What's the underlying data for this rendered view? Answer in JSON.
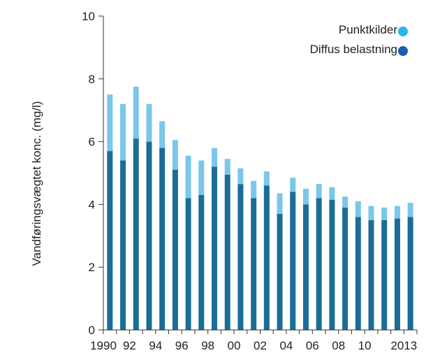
{
  "chart_data": {
    "type": "bar",
    "stacked": true,
    "title": "",
    "xlabel": "",
    "ylabel": "Vandføringsvægtet konc. (mg/l)",
    "ylim": [
      0,
      10
    ],
    "yticks": [
      0,
      2,
      4,
      6,
      8,
      10
    ],
    "grid": false,
    "legend_position": "top-right",
    "categories": [
      1990,
      1991,
      1992,
      1993,
      1994,
      1995,
      1996,
      1997,
      1998,
      1999,
      2000,
      2001,
      2002,
      2003,
      2004,
      2005,
      2006,
      2007,
      2008,
      2009,
      2010,
      2011,
      2012,
      2013
    ],
    "xtick_labels": [
      {
        "year": 1990,
        "label": "1990"
      },
      {
        "year": 1992,
        "label": "92"
      },
      {
        "year": 1994,
        "label": "94"
      },
      {
        "year": 1996,
        "label": "96"
      },
      {
        "year": 1998,
        "label": "98"
      },
      {
        "year": 2000,
        "label": "00"
      },
      {
        "year": 2002,
        "label": "02"
      },
      {
        "year": 2004,
        "label": "04"
      },
      {
        "year": 2006,
        "label": "06"
      },
      {
        "year": 2008,
        "label": "08"
      },
      {
        "year": 2010,
        "label": "10"
      },
      {
        "year": 2013,
        "label": "2013"
      }
    ],
    "series": [
      {
        "name": "Diffus belastning",
        "color": "#1a6e96",
        "values": [
          5.7,
          5.4,
          6.1,
          6.0,
          5.8,
          5.1,
          4.2,
          4.3,
          5.2,
          4.95,
          4.65,
          4.2,
          4.6,
          3.7,
          4.4,
          4.0,
          4.2,
          4.15,
          3.9,
          3.6,
          3.5,
          3.5,
          3.55,
          3.6
        ]
      },
      {
        "name": "Punktkilder",
        "color": "#7cc6ea",
        "values": [
          1.8,
          1.8,
          1.65,
          1.2,
          0.85,
          0.95,
          1.35,
          1.1,
          0.6,
          0.5,
          0.5,
          0.55,
          0.45,
          0.65,
          0.45,
          0.5,
          0.45,
          0.4,
          0.35,
          0.5,
          0.45,
          0.4,
          0.4,
          0.45
        ]
      }
    ],
    "legend": [
      {
        "label": "Punktkilder",
        "marker_color": "#29b6ee"
      },
      {
        "label": "Diffus belastning",
        "marker_color": "#1a5fa8"
      }
    ]
  }
}
